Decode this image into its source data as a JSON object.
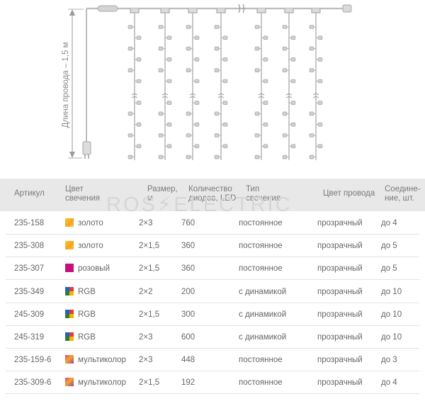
{
  "diagram": {
    "wire_length_label": "Длина провода – 1,5 м",
    "colors": {
      "wire": "#b9b9b9",
      "led": "#cfcfcf",
      "arrow": "#9a9a9a"
    }
  },
  "watermark": "ROS⚡ELECTRIC",
  "table": {
    "headers": [
      [
        "Артикул"
      ],
      [
        "Цвет",
        "свечения"
      ],
      [
        "Размер,",
        "м"
      ],
      [
        "Количество",
        "диодов, LED"
      ],
      [
        "Тип",
        "свечения"
      ],
      [
        "Цвет провода"
      ],
      [
        "Соедине-",
        "ние, шт."
      ]
    ],
    "rows": [
      {
        "article": "235-158",
        "swatch": "gold",
        "color": "золото",
        "size": "2×3",
        "leds": "760",
        "type": "постоянное",
        "wire": "прозрачный",
        "connect": "до 4"
      },
      {
        "article": "235-308",
        "swatch": "gold",
        "color": "золото",
        "size": "2×1,5",
        "leds": "360",
        "type": "постоянное",
        "wire": "прозрачный",
        "connect": "до 5"
      },
      {
        "article": "235-307",
        "swatch": "pink",
        "color": "розовый",
        "size": "2×1,5",
        "leds": "360",
        "type": "постоянное",
        "wire": "прозрачный",
        "connect": "до 5"
      },
      {
        "article": "235-349",
        "swatch": "rgb",
        "color": "RGB",
        "size": "2×2",
        "leds": "200",
        "type": "с динамикой",
        "wire": "прозрачный",
        "connect": "до 10"
      },
      {
        "article": "245-309",
        "swatch": "rgb",
        "color": "RGB",
        "size": "2×1,5",
        "leds": "300",
        "type": "с динамикой",
        "wire": "прозрачный",
        "connect": "до 10"
      },
      {
        "article": "245-319",
        "swatch": "rgb",
        "color": "RGB",
        "size": "2×3",
        "leds": "600",
        "type": "с динамикой",
        "wire": "прозрачный",
        "connect": "до 10"
      },
      {
        "article": "235-159-6",
        "swatch": "multi",
        "color": "мультиколор",
        "size": "2×3",
        "leds": "448",
        "type": "постоянное",
        "wire": "прозрачный",
        "connect": "до 3"
      },
      {
        "article": "235-309-6",
        "swatch": "multi",
        "color": "мультиколор",
        "size": "2×1,5",
        "leds": "192",
        "type": "постоянное",
        "wire": "прозрачный",
        "connect": "до 4"
      }
    ]
  }
}
